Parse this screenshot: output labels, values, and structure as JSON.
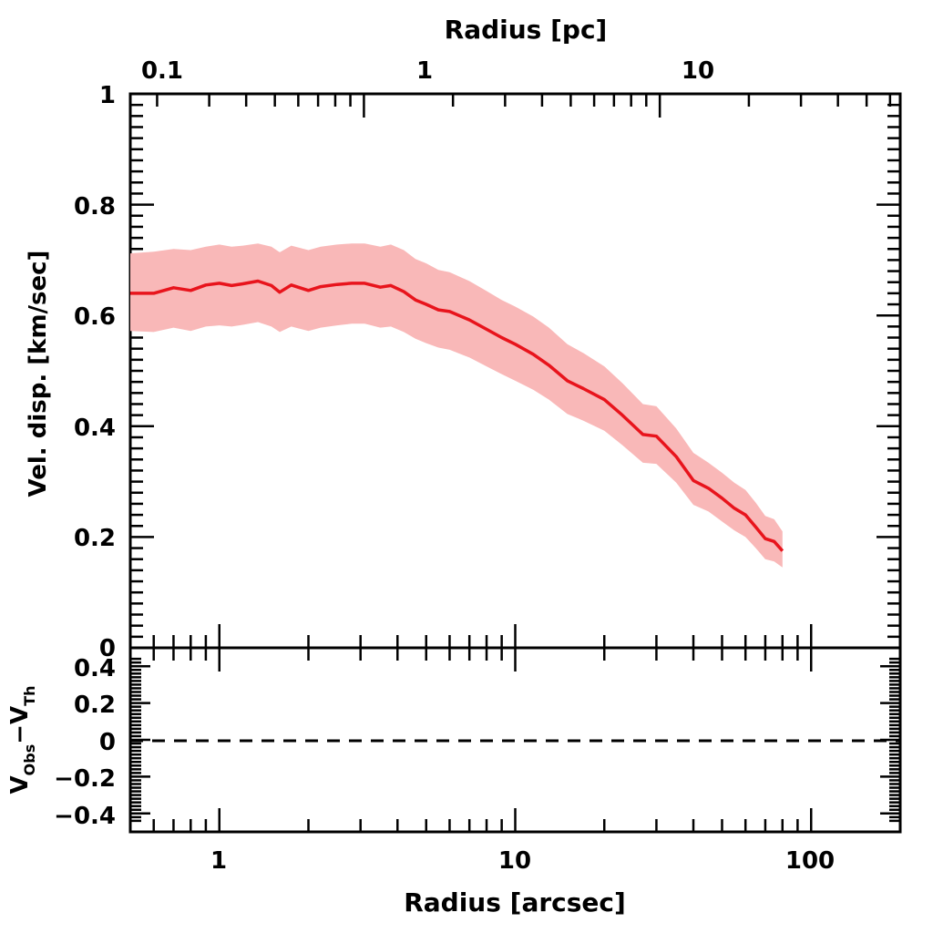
{
  "chart_data": [
    {
      "type": "line",
      "panel": "main",
      "xlabel": "Radius [arcsec]",
      "x2label": "Radius [pc]",
      "ylabel": "Vel. disp. [km/sec]",
      "x_scale": "log",
      "xlim": [
        0.5,
        200
      ],
      "ylim": [
        0,
        1
      ],
      "y_ticks": [
        "0",
        "0.2",
        "0.4",
        "0.6",
        "0.8",
        "1"
      ],
      "x2_ticks": [
        "0.1",
        "1",
        "10"
      ],
      "series": [
        {
          "color": "#e8141c",
          "band_color": "#f9b8b8",
          "x": [
            0.5,
            0.6,
            0.7,
            0.8,
            0.9,
            1.0,
            1.1,
            1.2,
            1.35,
            1.5,
            1.6,
            1.75,
            2.0,
            2.2,
            2.5,
            2.8,
            3.1,
            3.5,
            3.8,
            4.2,
            4.6,
            5.0,
            5.5,
            6.0,
            7.0,
            8.0,
            9.0,
            10.0,
            11.5,
            13.0,
            15.0,
            17.0,
            20.0,
            23.0,
            27.0,
            30.0,
            35.0,
            40.0,
            45.0,
            50.0,
            55.0,
            60.0,
            65.0,
            70.0,
            75.0,
            80.0
          ],
          "y": [
            0.64,
            0.64,
            0.65,
            0.645,
            0.655,
            0.658,
            0.654,
            0.657,
            0.662,
            0.654,
            0.642,
            0.655,
            0.645,
            0.652,
            0.656,
            0.658,
            0.658,
            0.651,
            0.654,
            0.643,
            0.628,
            0.62,
            0.61,
            0.607,
            0.592,
            0.575,
            0.56,
            0.548,
            0.53,
            0.51,
            0.482,
            0.468,
            0.448,
            0.42,
            0.385,
            0.382,
            0.345,
            0.302,
            0.288,
            0.27,
            0.252,
            0.24,
            0.218,
            0.197,
            0.192,
            0.175
          ],
          "lower": [
            0.572,
            0.57,
            0.578,
            0.572,
            0.58,
            0.582,
            0.58,
            0.583,
            0.588,
            0.58,
            0.57,
            0.58,
            0.572,
            0.578,
            0.582,
            0.585,
            0.585,
            0.578,
            0.58,
            0.57,
            0.558,
            0.55,
            0.542,
            0.538,
            0.524,
            0.508,
            0.494,
            0.482,
            0.466,
            0.448,
            0.422,
            0.41,
            0.392,
            0.366,
            0.334,
            0.332,
            0.298,
            0.258,
            0.246,
            0.228,
            0.212,
            0.2,
            0.18,
            0.16,
            0.156,
            0.145
          ],
          "upper": [
            0.712,
            0.715,
            0.72,
            0.718,
            0.724,
            0.728,
            0.724,
            0.726,
            0.73,
            0.724,
            0.714,
            0.726,
            0.718,
            0.724,
            0.728,
            0.73,
            0.73,
            0.724,
            0.728,
            0.718,
            0.702,
            0.694,
            0.682,
            0.678,
            0.662,
            0.644,
            0.628,
            0.616,
            0.598,
            0.578,
            0.548,
            0.532,
            0.508,
            0.478,
            0.44,
            0.436,
            0.396,
            0.352,
            0.334,
            0.316,
            0.298,
            0.285,
            0.262,
            0.238,
            0.232,
            0.21
          ]
        }
      ]
    },
    {
      "type": "line",
      "panel": "residual",
      "ylabel": "V_Obs - V_Th",
      "x_scale": "log",
      "xlim": [
        0.5,
        200
      ],
      "ylim": [
        -0.5,
        0.5
      ],
      "x_ticks": [
        "1",
        "10",
        "100"
      ],
      "y_ticks": [
        "−0.4",
        "−0.2",
        "0",
        "0.2",
        "0.4"
      ],
      "reference_line": {
        "y": 0,
        "style": "dashed"
      }
    }
  ],
  "text": {
    "top_xlabel": "Radius [pc]",
    "bottom_xlabel": "Radius [arcsec]",
    "main_ylabel": "Vel. disp. [km/sec]",
    "res_ylabel_v1": "V",
    "res_ylabel_sub1": "Obs",
    "res_ylabel_minus": "−",
    "res_ylabel_v2": "V",
    "res_ylabel_sub2": "Th",
    "main_yticks": [
      "0",
      "0.2",
      "0.4",
      "0.6",
      "0.8",
      "1"
    ],
    "res_yticks": [
      "−0.4",
      "−0.2",
      "0",
      "0.2",
      "0.4"
    ],
    "bottom_xticks": [
      "1",
      "10",
      "100"
    ],
    "top_xticks": [
      "0.1",
      "1",
      "10"
    ]
  }
}
